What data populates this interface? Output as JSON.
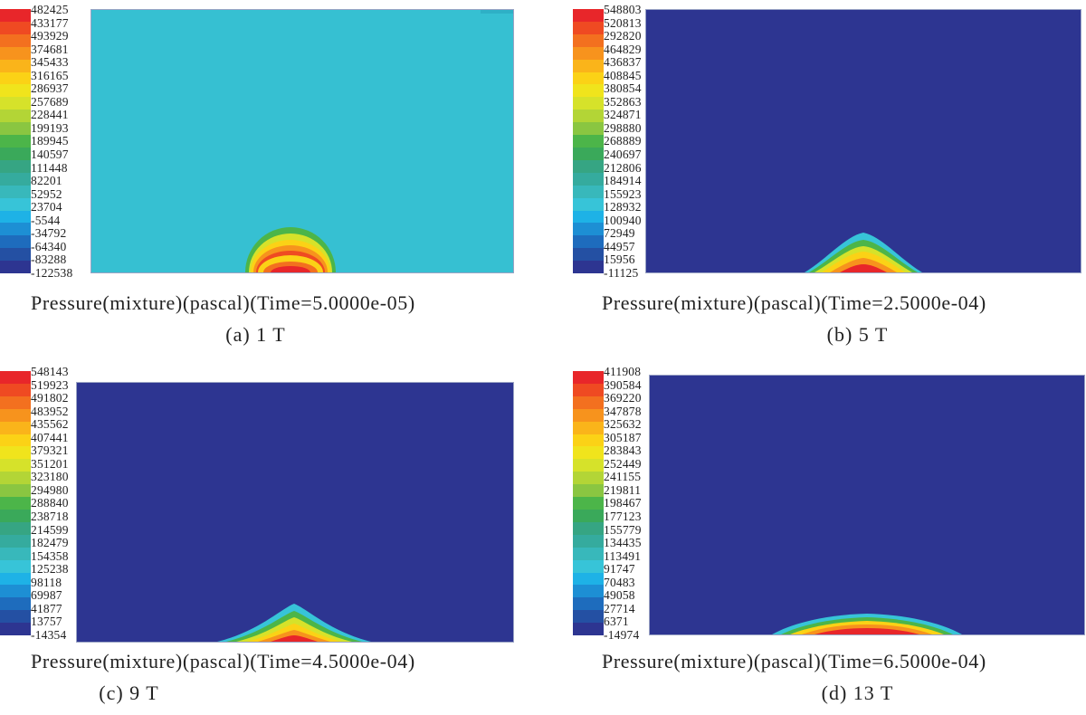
{
  "panels": [
    {
      "title": "Pressure(mixture)(pascal)(Time=5.0000e-05)",
      "subcaption": "(a) 1 T",
      "legend": [
        "482425",
        "433177",
        "493929",
        "374681",
        "345433",
        "316165",
        "286937",
        "257689",
        "228441",
        "199193",
        "189945",
        "140597",
        "111448",
        "82201",
        "52952",
        "23704",
        "-5544",
        "-34792",
        "-64340",
        "-83288",
        "-122538"
      ],
      "background": "#36c0d2"
    },
    {
      "title": "Pressure(mixture)(pascal)(Time=2.5000e-04)",
      "subcaption": "(b) 5 T",
      "legend": [
        "548803",
        "520813",
        "292820",
        "464829",
        "436837",
        "408845",
        "380854",
        "352863",
        "324871",
        "298880",
        "268889",
        "240697",
        "212806",
        "184914",
        "155923",
        "128932",
        "100940",
        "72949",
        "44957",
        "15956",
        "-11125"
      ],
      "background": "#2d3591"
    },
    {
      "title": "Pressure(mixture)(pascal)(Time=4.5000e-04)",
      "subcaption": "(c) 9 T",
      "legend": [
        "548143",
        "519923",
        "491802",
        "483952",
        "435562",
        "407441",
        "379321",
        "351201",
        "323180",
        "294980",
        "288840",
        "238718",
        "214599",
        "182479",
        "154358",
        "125238",
        "98118",
        "69987",
        "41877",
        "13757",
        "-14354"
      ],
      "background": "#2d3591"
    },
    {
      "title": "Pressure(mixture)(pascal)(Time=6.5000e-04)",
      "subcaption": "(d) 13 T",
      "legend": [
        "411908",
        "390584",
        "369220",
        "347878",
        "325632",
        "305187",
        "283843",
        "252449",
        "241155",
        "219811",
        "198467",
        "177123",
        "155779",
        "134435",
        "113491",
        "91747",
        "70483",
        "49058",
        "27714",
        "6371",
        "-14974"
      ],
      "background": "#2d3591"
    }
  ],
  "colormap": [
    "#e8262a",
    "#ef4a22",
    "#f3701f",
    "#f7931d",
    "#fab41a",
    "#fbd216",
    "#f0e41c",
    "#d6e22a",
    "#b3d536",
    "#8ac641",
    "#4cb549",
    "#3aa95a",
    "#36a583",
    "#35ab9e",
    "#38b8bb",
    "#37c4d8",
    "#1eb2e6",
    "#1d8fd4",
    "#1e6cbd",
    "#2450a3",
    "#2d3591"
  ]
}
